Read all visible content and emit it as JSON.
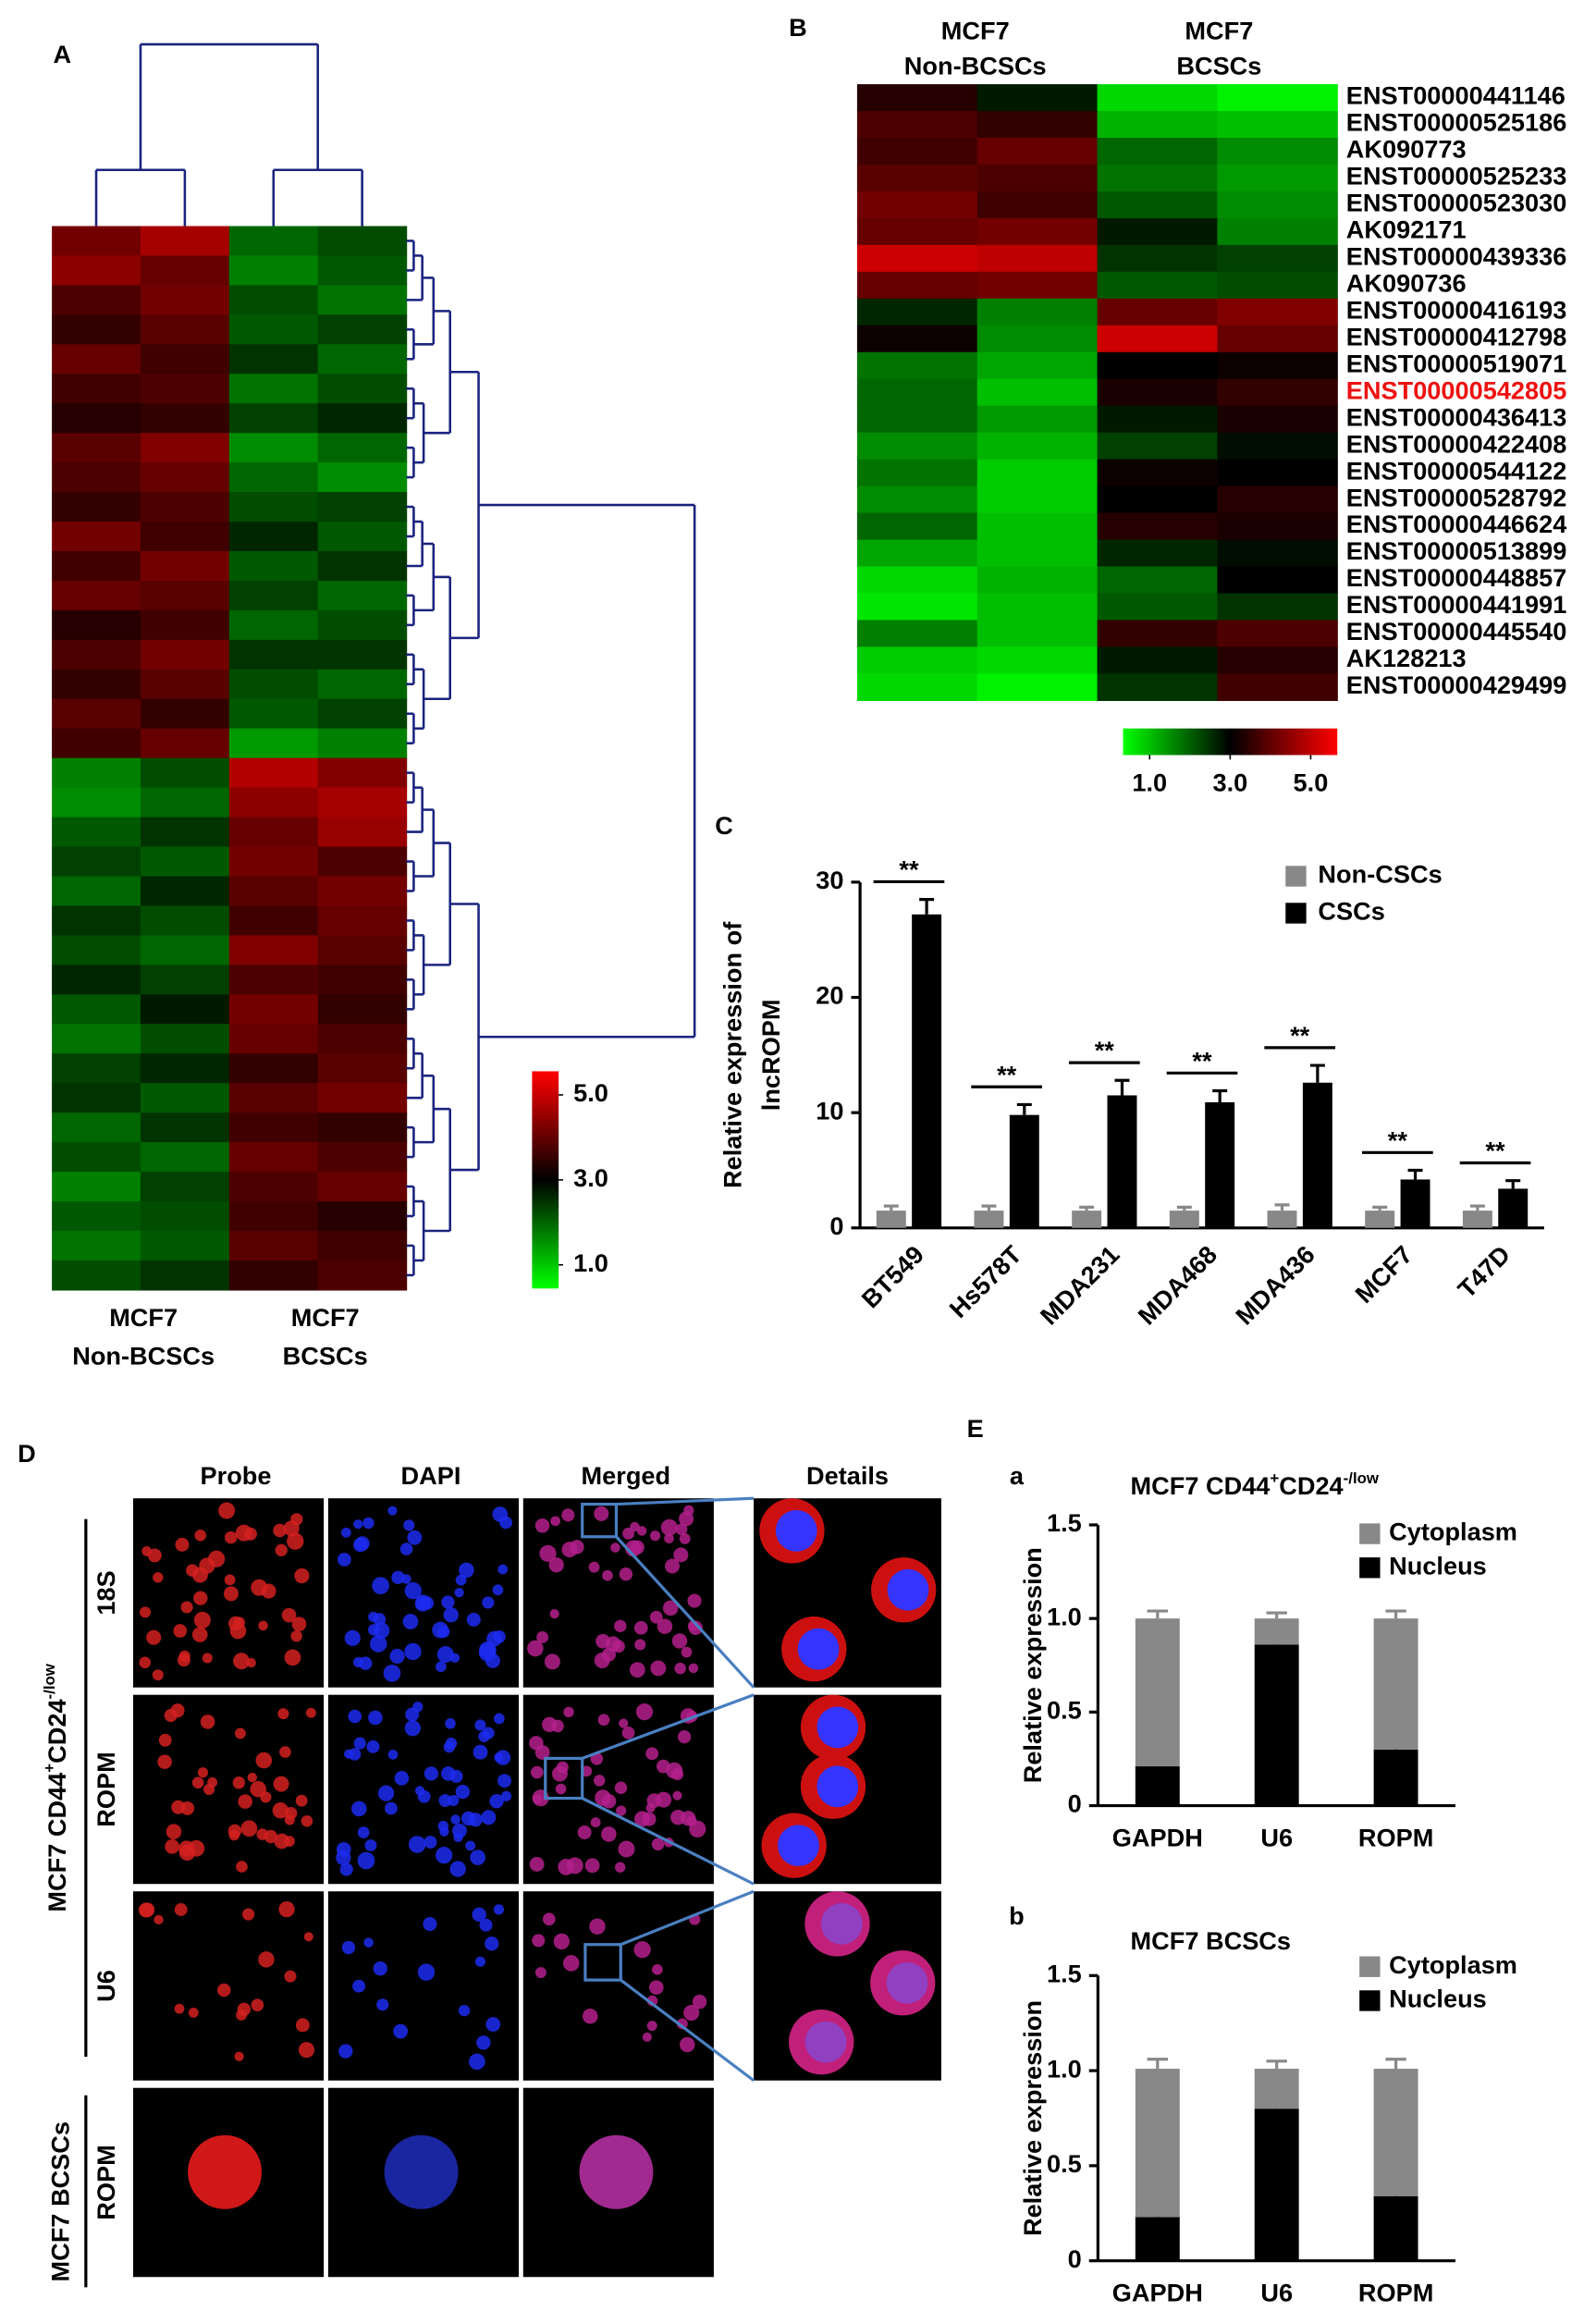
{
  "chart_data": [
    {
      "type": "heatmap",
      "panel": "A",
      "group_labels": [
        [
          "MCF7",
          "Non-BCSCs"
        ],
        [
          "MCF7",
          "BCSCs"
        ]
      ],
      "values": [
        [
          3.9,
          4.3,
          2.2,
          2.4
        ],
        [
          4.1,
          3.8,
          2.0,
          2.3
        ],
        [
          3.6,
          3.9,
          2.4,
          2.1
        ],
        [
          3.4,
          3.7,
          2.3,
          2.5
        ],
        [
          3.8,
          3.5,
          2.6,
          2.2
        ],
        [
          3.5,
          3.6,
          2.1,
          2.4
        ],
        [
          3.3,
          3.4,
          2.5,
          2.7
        ],
        [
          3.7,
          4.0,
          1.9,
          2.2
        ],
        [
          3.6,
          3.8,
          2.2,
          1.9
        ],
        [
          3.4,
          3.6,
          2.4,
          2.5
        ],
        [
          3.9,
          3.5,
          2.7,
          2.3
        ],
        [
          3.5,
          3.9,
          2.3,
          2.6
        ],
        [
          3.8,
          3.7,
          2.5,
          2.2
        ],
        [
          3.3,
          3.5,
          2.2,
          2.4
        ],
        [
          3.6,
          3.9,
          2.6,
          2.6
        ],
        [
          3.4,
          3.7,
          2.4,
          2.2
        ],
        [
          3.7,
          3.4,
          2.3,
          2.5
        ],
        [
          3.5,
          3.8,
          1.8,
          2.0
        ],
        [
          2.0,
          2.4,
          4.4,
          4.0
        ],
        [
          1.9,
          2.2,
          4.1,
          4.3
        ],
        [
          2.3,
          2.6,
          3.8,
          4.2
        ],
        [
          2.5,
          2.3,
          3.9,
          3.6
        ],
        [
          2.2,
          2.7,
          3.7,
          3.9
        ],
        [
          2.6,
          2.4,
          3.5,
          3.8
        ],
        [
          2.4,
          2.2,
          4.0,
          3.7
        ],
        [
          2.7,
          2.5,
          3.6,
          3.5
        ],
        [
          2.3,
          2.8,
          3.9,
          3.4
        ],
        [
          2.1,
          2.4,
          3.8,
          3.6
        ],
        [
          2.5,
          2.7,
          3.4,
          3.7
        ],
        [
          2.6,
          2.3,
          3.7,
          3.9
        ],
        [
          2.2,
          2.6,
          3.5,
          3.4
        ],
        [
          2.4,
          2.2,
          3.8,
          3.6
        ],
        [
          2.0,
          2.5,
          3.6,
          3.8
        ],
        [
          2.3,
          2.4,
          3.5,
          3.3
        ],
        [
          2.1,
          2.3,
          3.7,
          3.5
        ],
        [
          2.4,
          2.6,
          3.4,
          3.6
        ]
      ],
      "clim": [
        1,
        5
      ],
      "colormap": [
        "#00ff00",
        "#000000",
        "#ff0000"
      ],
      "colorbar_ticks": [
        {
          "value": 1,
          "label": "1.0"
        },
        {
          "value": 3,
          "label": "3.0"
        },
        {
          "value": 5,
          "label": "5.0"
        }
      ],
      "colorbar": "vertical",
      "dendrogram": true,
      "dendrogram_color": "#1a237e"
    },
    {
      "type": "heatmap",
      "panel": "B",
      "group_labels": [
        [
          "MCF7",
          "Non-BCSCs"
        ],
        [
          "MCF7",
          "BCSCs"
        ]
      ],
      "rows": [
        "ENST00000441146",
        "ENST00000525186",
        "AK090773",
        "ENST00000525233",
        "ENST00000523030",
        "AK092171",
        "ENST00000439336",
        "AK090736",
        "ENST00000416193",
        "ENST00000412798",
        "ENST00000519071",
        "ENST00000542805",
        "ENST00000436413",
        "ENST00000422408",
        "ENST00000544122",
        "ENST00000528792",
        "ENST00000446624",
        "ENST00000513899",
        "ENST00000448857",
        "ENST00000441991",
        "ENST00000445540",
        "AK128213",
        "ENST00000429499"
      ],
      "values": [
        [
          3.3,
          2.8,
          1.3,
          1.1
        ],
        [
          3.6,
          3.4,
          1.6,
          1.5
        ],
        [
          3.5,
          3.8,
          2.2,
          1.9
        ],
        [
          3.7,
          3.6,
          2.1,
          1.8
        ],
        [
          3.9,
          3.5,
          2.3,
          1.9
        ],
        [
          3.8,
          3.9,
          2.8,
          2.0
        ],
        [
          4.6,
          4.5,
          2.6,
          2.5
        ],
        [
          3.8,
          3.9,
          2.3,
          2.4
        ],
        [
          2.7,
          2.0,
          3.8,
          4.0
        ],
        [
          3.1,
          1.9,
          4.6,
          3.8
        ],
        [
          2.1,
          1.7,
          3.0,
          3.1
        ],
        [
          2.2,
          1.5,
          3.2,
          3.4
        ],
        [
          2.2,
          1.8,
          2.8,
          3.2
        ],
        [
          1.9,
          1.6,
          2.5,
          2.9
        ],
        [
          2.1,
          1.4,
          3.1,
          3.0
        ],
        [
          1.9,
          1.4,
          3.0,
          3.3
        ],
        [
          2.2,
          1.5,
          3.3,
          3.2
        ],
        [
          1.7,
          1.5,
          2.7,
          2.9
        ],
        [
          1.3,
          1.6,
          2.2,
          3.0
        ],
        [
          1.2,
          1.5,
          2.3,
          2.6
        ],
        [
          2.0,
          1.5,
          3.4,
          3.6
        ],
        [
          1.4,
          1.3,
          2.8,
          3.3
        ],
        [
          1.3,
          1.1,
          2.6,
          3.5
        ]
      ],
      "highlight_row": 11,
      "highlight_color": "#ee1111",
      "clim": [
        1,
        5
      ],
      "colormap": [
        "#00ff00",
        "#000000",
        "#ff0000"
      ],
      "colorbar_ticks": [
        {
          "value": 1,
          "label": "1.0"
        },
        {
          "value": 3,
          "label": "3.0"
        },
        {
          "value": 5,
          "label": "5.0"
        }
      ],
      "colorbar": "horizontal"
    },
    {
      "type": "bar",
      "panel": "C",
      "categories": [
        "BT549",
        "Hs578T",
        "MDA231",
        "MDA468",
        "MDA436",
        "MCF7",
        "T47D"
      ],
      "series": [
        {
          "name": "Non-CSCs",
          "color": "#888888",
          "values": [
            1.5,
            1.5,
            1.5,
            1.5,
            1.5,
            1.5,
            1.5
          ],
          "errors": [
            0.4,
            0.4,
            0.3,
            0.3,
            0.5,
            0.3,
            0.4
          ]
        },
        {
          "name": "CSCs",
          "color": "#000000",
          "values": [
            27.2,
            9.8,
            11.5,
            10.9,
            12.6,
            4.2,
            3.4
          ],
          "errors": [
            1.3,
            0.9,
            1.3,
            1.0,
            1.5,
            0.8,
            0.7
          ]
        }
      ],
      "significance": [
        "**",
        "**",
        "**",
        "**",
        "**",
        "**",
        "**"
      ],
      "ylim": [
        0,
        30
      ],
      "yticks": [
        0,
        10,
        20,
        30
      ],
      "ylabel": [
        "Relative expression of",
        "lncROPM"
      ],
      "legend": "upper right"
    },
    {
      "type": "stacked_bar",
      "panel": "E",
      "subpanel": "a",
      "title_parts": [
        "MCF7 CD44",
        "+",
        "CD24",
        "-/low"
      ],
      "categories": [
        "GAPDH",
        "U6",
        "ROPM"
      ],
      "series": [
        {
          "name": "Nucleus",
          "color": "#000000",
          "values": [
            0.21,
            0.86,
            0.3
          ],
          "errors": [
            0.03,
            0.03,
            0.03
          ]
        },
        {
          "name": "Cytoplasm",
          "color": "#888888",
          "values": [
            0.79,
            0.14,
            0.7
          ],
          "errors": [
            0.04,
            0.03,
            0.04
          ]
        }
      ],
      "ylim": [
        0,
        1.5
      ],
      "yticks": [
        0,
        0.5,
        {
          "value": 1,
          "label": "1.0"
        },
        1.5
      ],
      "ylabel": "Relative expression",
      "legend": "upper right"
    },
    {
      "type": "stacked_bar",
      "subpanel": "b",
      "title_parts": [
        "MCF7 BCSCs"
      ],
      "categories": [
        "GAPDH",
        "U6",
        "ROPM"
      ],
      "series": [
        {
          "name": "Nucleus",
          "color": "#000000",
          "values": [
            0.23,
            0.8,
            0.34
          ],
          "errors": [
            0.03,
            0.03,
            0.03
          ]
        },
        {
          "name": "Cytoplasm",
          "color": "#888888",
          "values": [
            0.78,
            0.21,
            0.67
          ],
          "errors": [
            0.05,
            0.04,
            0.05
          ]
        }
      ],
      "ylim": [
        0,
        1.5
      ],
      "yticks": [
        0,
        0.5,
        {
          "value": 1,
          "label": "1.0"
        },
        1.5
      ],
      "ylabel": "Relative expression",
      "legend": "upper right"
    }
  ],
  "microscopy": {
    "panel": "D",
    "columns": [
      "Probe",
      "DAPI",
      "Merged",
      "Details"
    ],
    "group_label_parts": [
      "MCF7 CD44",
      "+",
      "CD24",
      "-/low"
    ],
    "rows": [
      "18S",
      "ROPM",
      "U6"
    ],
    "bottom_group": "MCF7 BCSCs",
    "bottom_row": "ROPM"
  }
}
